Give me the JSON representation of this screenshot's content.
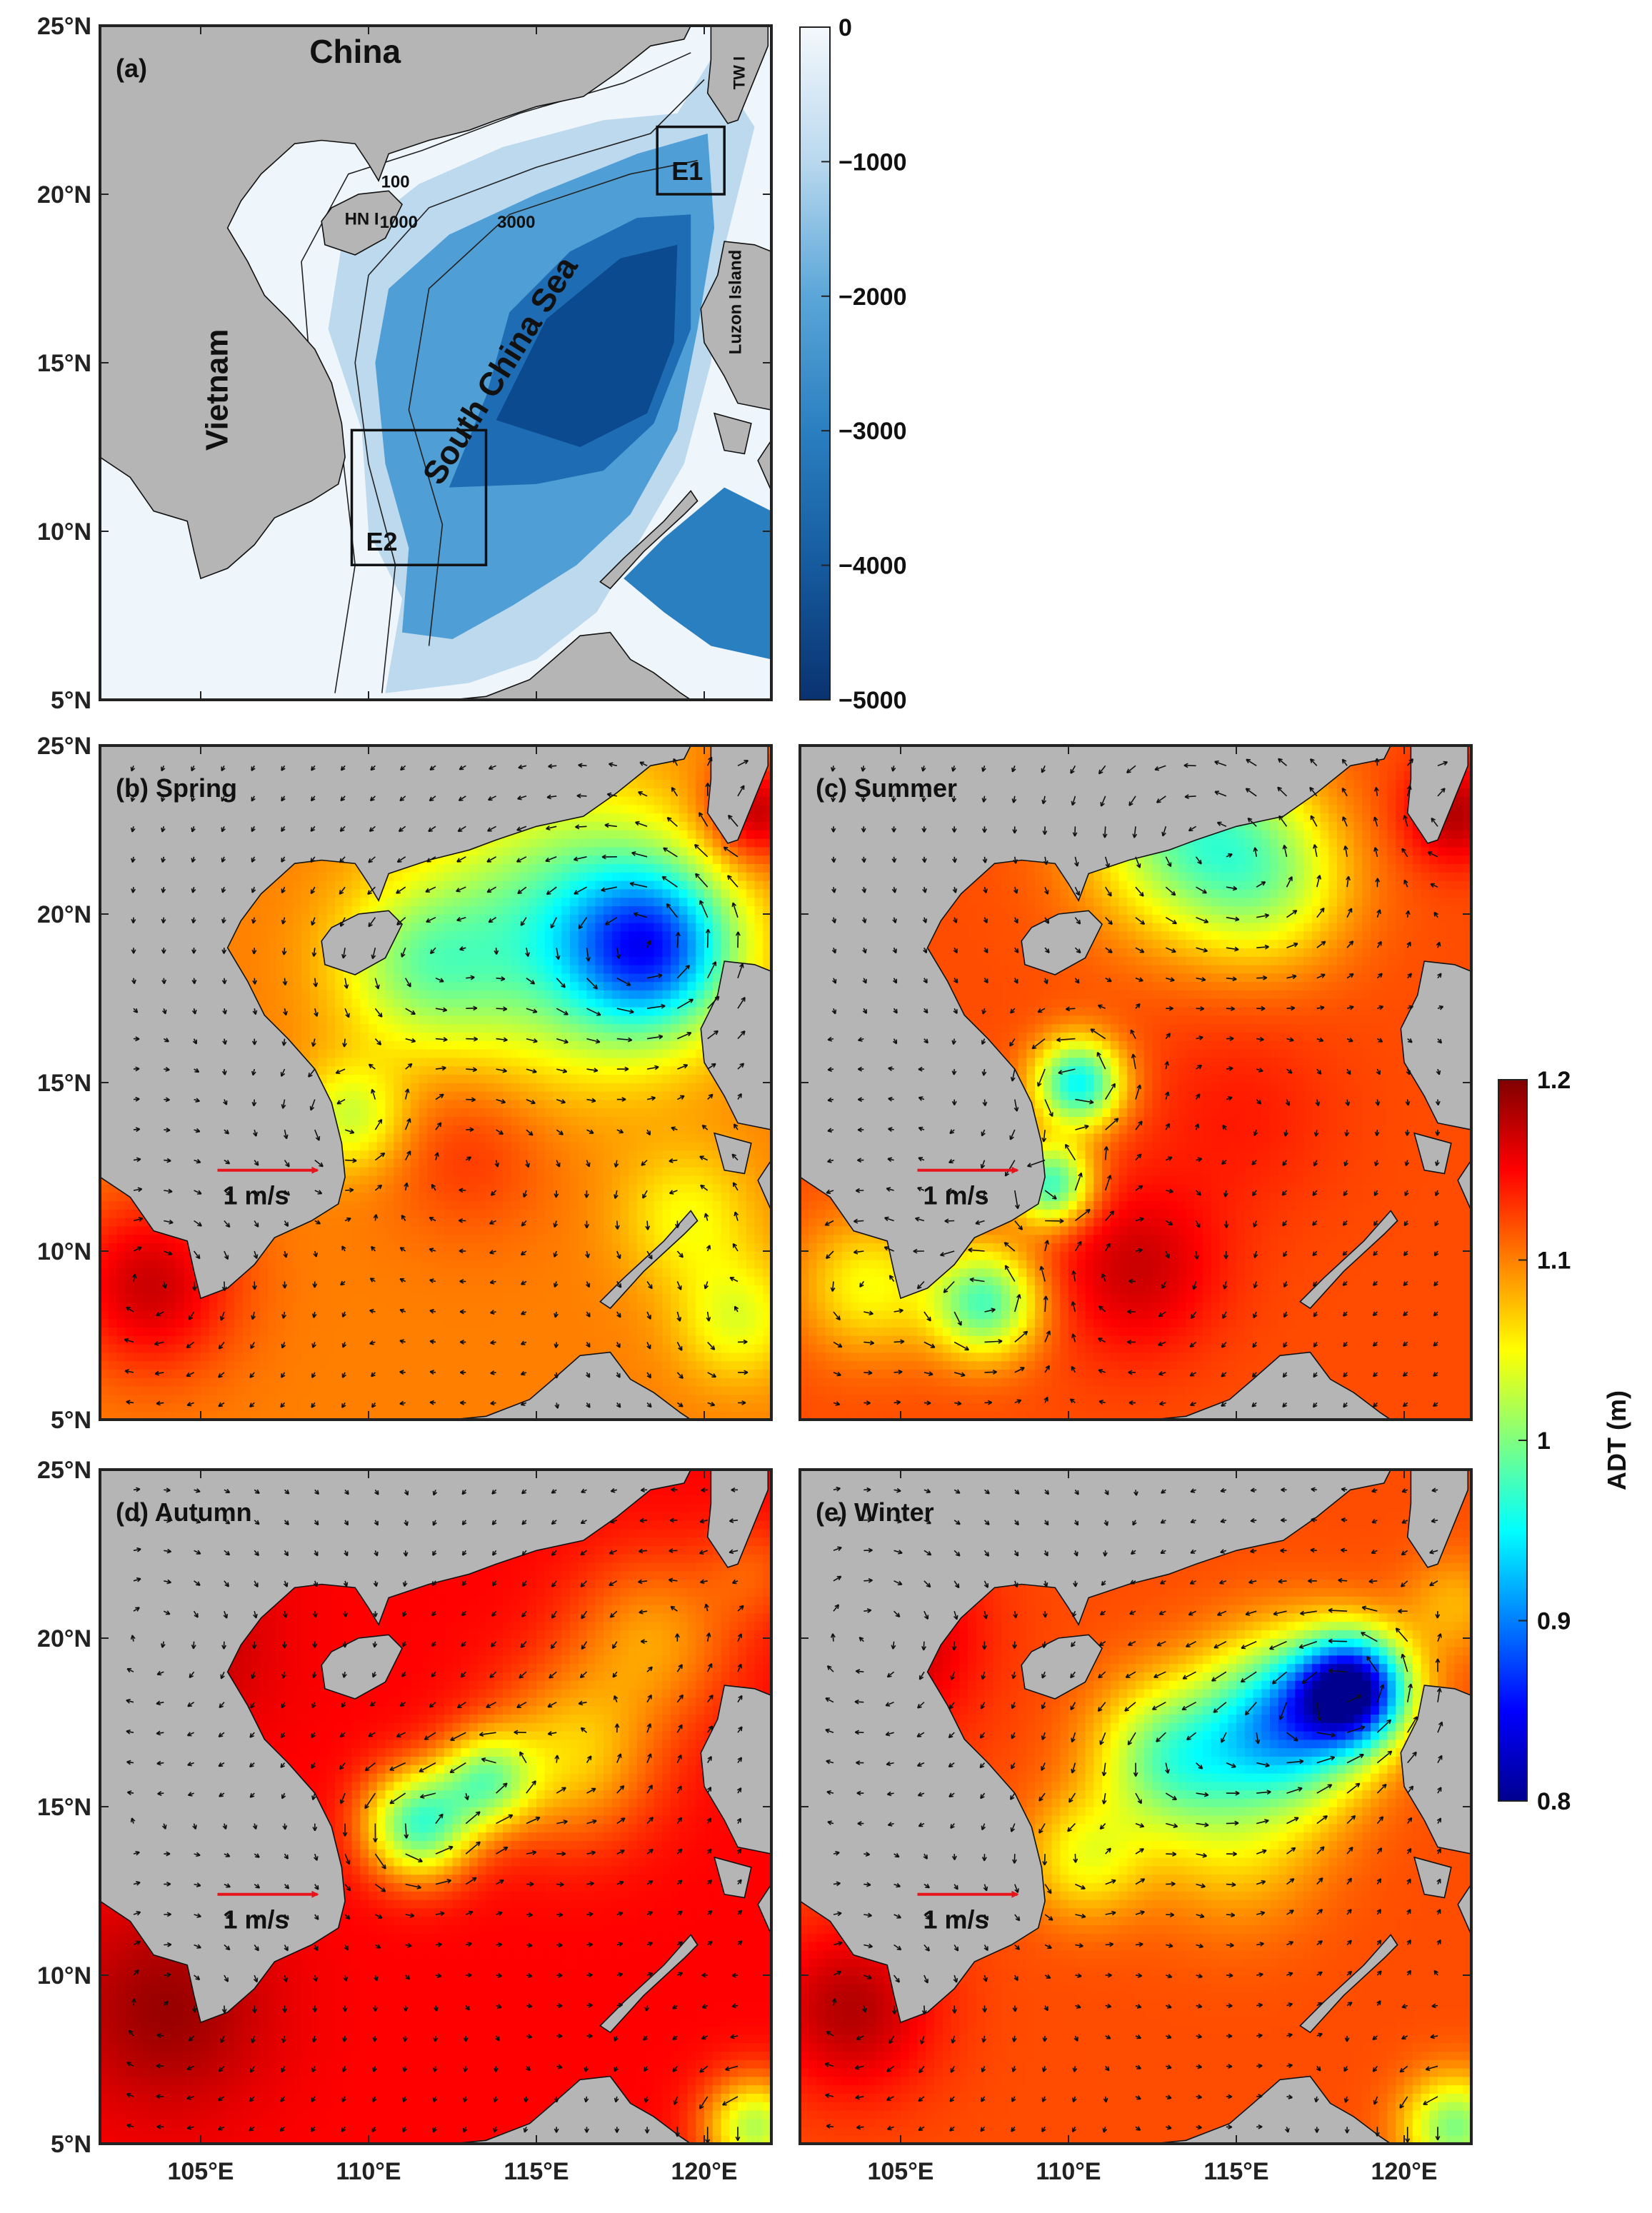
{
  "figure": {
    "panels": [
      {
        "id": "a",
        "label": "(a)",
        "type": "bathymetry"
      },
      {
        "id": "b",
        "label": "(b) Spring",
        "type": "adt",
        "season": "spring"
      },
      {
        "id": "c",
        "label": "(c) Summer",
        "type": "adt",
        "season": "summer"
      },
      {
        "id": "d",
        "label": "(d) Autumn",
        "type": "adt",
        "season": "autumn"
      },
      {
        "id": "e",
        "label": "(e) Winter",
        "type": "adt",
        "season": "winter"
      }
    ],
    "lat_ticks": [
      "25°N",
      "20°N",
      "15°N",
      "10°N",
      "5°N"
    ],
    "lon_ticks": [
      "105°E",
      "110°E",
      "115°E",
      "120°E"
    ],
    "lon_range": [
      102,
      122
    ],
    "lat_range": [
      5,
      25
    ]
  },
  "bathymetry": {
    "colorbar_labels": [
      "0",
      "−1000",
      "−2000",
      "−3000",
      "−4000",
      "−5000"
    ],
    "colorbar_range": [
      -5000,
      0
    ],
    "colors": {
      "shallow": "#eef5fb",
      "deep": "#0a3d7a",
      "land": "#b4b4b4"
    },
    "places": {
      "china": "China",
      "vietnam": "Vietnam",
      "scs": "South China Sea",
      "hainan": "HN I",
      "taiwan": "TW I",
      "luzon": "Luzon Island"
    },
    "contour_labels": [
      "100",
      "1000",
      "3000"
    ],
    "boxes": [
      {
        "name": "E1",
        "lon": [
          118.6,
          120.6
        ],
        "lat": [
          20,
          22
        ]
      },
      {
        "name": "E2",
        "lon": [
          109.5,
          113.5
        ],
        "lat": [
          9,
          13
        ]
      }
    ]
  },
  "adt": {
    "colorbar_title": "ADT (m)",
    "colorbar_labels": [
      "1.2",
      "1.1",
      "1",
      "0.9",
      "0.8"
    ],
    "colorbar_range": [
      0.8,
      1.2
    ],
    "colormap": "jet",
    "scale_arrow_label": "1 m/s",
    "scale_arrow_color": "#e8141c"
  }
}
